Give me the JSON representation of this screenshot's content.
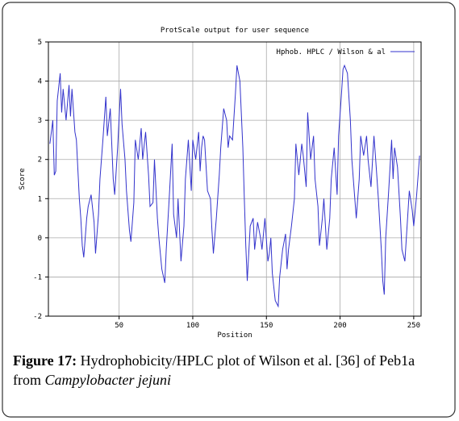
{
  "chart_data": {
    "type": "line",
    "title": "ProtScale output for user sequence",
    "xlabel": "Position",
    "ylabel": "Score",
    "xlim": [
      2,
      255
    ],
    "ylim": [
      -2,
      5
    ],
    "xticks": [
      50,
      100,
      150,
      200,
      250
    ],
    "yticks": [
      -2,
      -1,
      0,
      1,
      2,
      3,
      4,
      5
    ],
    "grid": true,
    "legend": "top-right",
    "series": [
      {
        "name": "Hphob. HPLC / Wilson & al",
        "color": "#3333cc",
        "x": [
          3,
          5,
          6,
          7,
          8,
          10,
          11,
          12,
          14,
          16,
          17,
          18,
          20,
          21,
          23,
          24,
          25,
          26,
          28,
          29,
          31,
          33,
          34,
          36,
          37,
          39,
          41,
          42,
          44,
          46,
          47,
          49,
          51,
          52,
          54,
          55,
          57,
          58,
          60,
          61,
          63,
          65,
          66,
          68,
          70,
          71,
          73,
          74,
          76,
          77,
          79,
          81,
          82,
          84,
          86,
          87,
          89,
          90,
          92,
          94,
          95,
          97,
          99,
          100,
          102,
          104,
          105,
          106,
          107,
          108,
          110,
          112,
          113,
          114,
          116,
          118,
          119,
          121,
          123,
          124,
          125,
          127,
          129,
          130,
          132,
          134,
          135,
          136,
          137,
          139,
          141,
          142,
          144,
          146,
          147,
          149,
          151,
          152,
          153,
          154,
          156,
          158,
          159,
          161,
          163,
          164,
          165,
          167,
          169,
          170,
          172,
          174,
          175,
          177,
          178,
          180,
          182,
          183,
          185,
          186,
          188,
          189,
          191,
          193,
          194,
          196,
          198,
          199,
          201,
          202,
          203,
          205,
          207,
          208,
          210,
          211,
          213,
          214,
          216,
          218,
          219,
          221,
          223,
          224,
          226,
          228,
          229,
          230,
          231,
          233,
          235,
          236,
          237,
          239,
          241,
          242,
          244,
          245,
          247,
          249,
          250,
          252,
          254
        ],
        "values": [
          2.4,
          3.0,
          1.6,
          1.7,
          3.5,
          4.2,
          3.2,
          3.8,
          3.0,
          3.9,
          3.1,
          3.8,
          2.7,
          2.5,
          1.0,
          0.5,
          -0.2,
          -0.5,
          0.5,
          0.8,
          1.1,
          0.4,
          -0.4,
          0.6,
          1.5,
          2.5,
          3.6,
          2.6,
          3.3,
          1.5,
          1.1,
          2.3,
          3.8,
          2.9,
          2.0,
          1.2,
          0.2,
          -0.1,
          0.9,
          2.5,
          2.0,
          2.8,
          2.0,
          2.7,
          1.6,
          0.8,
          0.9,
          2.0,
          0.5,
          0.0,
          -0.8,
          -1.15,
          -0.3,
          1.0,
          2.4,
          0.6,
          0.0,
          1.0,
          -0.6,
          0.3,
          1.5,
          2.5,
          1.2,
          2.5,
          2.0,
          2.7,
          1.7,
          2.3,
          2.6,
          2.5,
          1.2,
          1.0,
          0.2,
          -0.4,
          0.5,
          1.6,
          2.3,
          3.3,
          3.0,
          2.3,
          2.6,
          2.5,
          3.7,
          4.4,
          4.0,
          2.3,
          1.0,
          -0.2,
          -1.1,
          0.3,
          0.5,
          -0.3,
          0.4,
          0.0,
          -0.3,
          0.5,
          -0.6,
          -0.4,
          0.0,
          -0.9,
          -1.6,
          -1.75,
          -1.0,
          -0.3,
          0.1,
          -0.8,
          -0.3,
          0.3,
          1.0,
          2.4,
          1.6,
          2.4,
          2.1,
          1.3,
          3.2,
          2.0,
          2.6,
          1.5,
          0.8,
          -0.2,
          0.5,
          1.0,
          -0.3,
          0.5,
          1.5,
          2.3,
          1.1,
          2.6,
          3.7,
          4.3,
          4.4,
          4.2,
          3.0,
          2.0,
          1.0,
          0.5,
          1.5,
          2.6,
          2.1,
          2.6,
          2.0,
          1.3,
          2.6,
          2.1,
          1.0,
          -0.3,
          -1.1,
          -1.45,
          0.0,
          1.2,
          2.5,
          1.5,
          2.3,
          1.8,
          0.5,
          -0.3,
          -0.6,
          0.0,
          1.2,
          0.7,
          0.3,
          1.1,
          2.1
        ]
      }
    ]
  },
  "caption": {
    "label": "Figure 17:",
    "text": " Hydrophobicity/HPLC plot of Wilson et al. [36] of Peb1a",
    "text2": "from ",
    "species": "Campylobacter jejuni"
  }
}
